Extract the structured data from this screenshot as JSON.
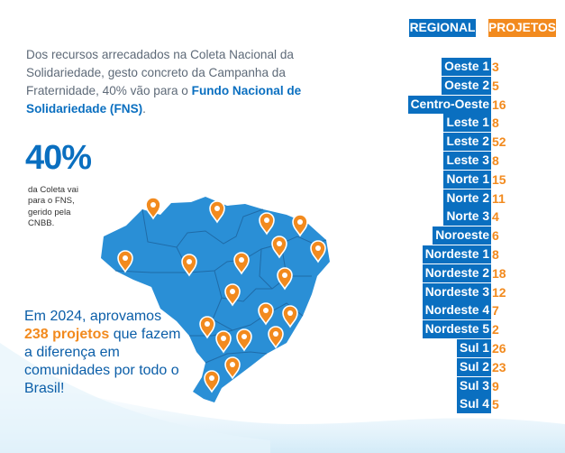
{
  "intro": {
    "text_before": "Dos recursos arrecadados na Coleta Nacional da Solidariedade, gesto concreto da Campanha da Fraternidade, 40% vão para o ",
    "highlight": "Fundo Nacional de Solidariedade (FNS)",
    "text_after": "."
  },
  "highlight_stat": {
    "value": "40%",
    "note": "da Coleta vai para o FNS, gerido pela CNBB."
  },
  "outro": {
    "prefix": "Em 2024, aprovamos ",
    "number": "238",
    "number_suffix": "projetos",
    "rest": " que fazem a diferença em comunidades por todo o Brasil!"
  },
  "table": {
    "header_regional": "REGIONAL",
    "header_projetos": "PROJETOS",
    "rows": [
      {
        "regional": "Oeste 1",
        "projetos": "3"
      },
      {
        "regional": "Oeste 2",
        "projetos": "5"
      },
      {
        "regional": "Centro-Oeste",
        "projetos": "16"
      },
      {
        "regional": "Leste 1",
        "projetos": "8"
      },
      {
        "regional": "Leste 2",
        "projetos": "52"
      },
      {
        "regional": "Leste 3",
        "projetos": "8"
      },
      {
        "regional": "Norte 1",
        "projetos": "15"
      },
      {
        "regional": "Norte 2",
        "projetos": "11"
      },
      {
        "regional": "Norte 3",
        "projetos": "4"
      },
      {
        "regional": "Noroeste",
        "projetos": "6"
      },
      {
        "regional": "Nordeste 1",
        "projetos": "8"
      },
      {
        "regional": "Nordeste 2",
        "projetos": "18"
      },
      {
        "regional": "Nordeste 3",
        "projetos": "12"
      },
      {
        "regional": "Nordeste 4",
        "projetos": "7"
      },
      {
        "regional": "Nordeste 5",
        "projetos": "2"
      },
      {
        "regional": "Sul 1",
        "projetos": "26"
      },
      {
        "regional": "Sul 2",
        "projetos": "23"
      },
      {
        "regional": "Sul 3",
        "projetos": "9"
      },
      {
        "regional": "Sul 4",
        "projetos": "5"
      }
    ]
  },
  "colors": {
    "blue": "#0a6fc0",
    "orange": "#f28a1e",
    "map_fill": "#2a8fd6",
    "text_gray": "#5e6a78"
  }
}
